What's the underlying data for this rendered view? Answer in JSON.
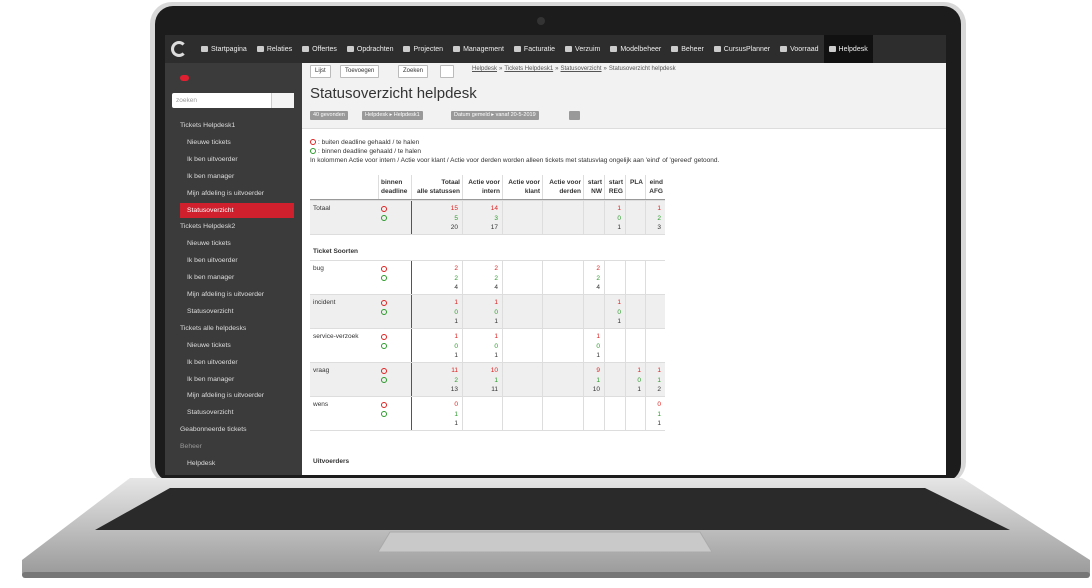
{
  "nav": {
    "items": [
      {
        "label": "Startpagina"
      },
      {
        "label": "Relaties"
      },
      {
        "label": "Offertes"
      },
      {
        "label": "Opdrachten"
      },
      {
        "label": "Projecten"
      },
      {
        "label": "Management"
      },
      {
        "label": "Facturatie"
      },
      {
        "label": "Verzuim"
      },
      {
        "label": "Modelbeheer"
      },
      {
        "label": "Beheer"
      },
      {
        "label": "CursusPlanner"
      },
      {
        "label": "Voorraad"
      },
      {
        "label": "Helpdesk",
        "active": true
      }
    ]
  },
  "sidebar": {
    "search_placeholder": "zoeken",
    "items": [
      {
        "label": "Tickets Helpdesk1",
        "level": 0
      },
      {
        "label": "Nieuwe tickets",
        "level": 1
      },
      {
        "label": "Ik ben uitvoerder",
        "level": 1
      },
      {
        "label": "Ik ben manager",
        "level": 1
      },
      {
        "label": "Mijn afdeling is uitvoerder",
        "level": 1
      },
      {
        "label": "Statusoverzicht",
        "level": 1,
        "active": true
      },
      {
        "label": "Tickets Helpdesk2",
        "level": 0
      },
      {
        "label": "Nieuwe tickets",
        "level": 1
      },
      {
        "label": "Ik ben uitvoerder",
        "level": 1
      },
      {
        "label": "Ik ben manager",
        "level": 1
      },
      {
        "label": "Mijn afdeling is uitvoerder",
        "level": 1
      },
      {
        "label": "Statusoverzicht",
        "level": 1
      },
      {
        "label": "Tickets alle helpdesks",
        "level": 0
      },
      {
        "label": "Nieuwe tickets",
        "level": 1
      },
      {
        "label": "Ik ben uitvoerder",
        "level": 1
      },
      {
        "label": "Ik ben manager",
        "level": 1
      },
      {
        "label": "Mijn afdeling is uitvoerder",
        "level": 1
      },
      {
        "label": "Statusoverzicht",
        "level": 1
      },
      {
        "label": "Geabonneerde tickets",
        "level": 0
      },
      {
        "label": "Beheer",
        "level": 0,
        "muted": true
      },
      {
        "label": "Helpdesk",
        "level": 1
      }
    ]
  },
  "toolbar": {
    "buttons": [
      "Lijst",
      "Toevoegen",
      "Zoeken"
    ],
    "breadcrumb": [
      "Helpdesk",
      "Tickets Helpdesk1",
      "Statusoverzicht",
      "Statusoverzicht helpdesk"
    ],
    "separator": "»"
  },
  "header": {
    "title": "Statusoverzicht helpdesk",
    "filters": [
      "40 gevonden",
      "Helpdesk ▸ Helpdesk1",
      "Datum gemeld ▸ vanaf 20-5-2019"
    ]
  },
  "legend": {
    "outside": ": buiten deadline gehaald / te halen",
    "inside": ": binnen deadline gehaald / te halen",
    "note": "In kolommen Actie voor intern / Actie voor klant / Actie voor derden worden alleen tickets met statusvlag ongelijk aan 'eind' of 'gereed' getoond."
  },
  "table": {
    "headers": [
      [
        "binnen",
        "deadline"
      ],
      [
        "Totaal",
        "alle statussen"
      ],
      [
        "Actie voor",
        "intern"
      ],
      [
        "Actie voor",
        "klant"
      ],
      [
        "Actie voor",
        "derden"
      ],
      [
        "start",
        "NW"
      ],
      [
        "start",
        "REG"
      ],
      [
        "PLA"
      ],
      [
        "eind",
        "AFG"
      ]
    ],
    "rows": [
      {
        "label": "Totaal",
        "lines": [
          [
            15,
            14,
            null,
            null,
            null,
            1,
            null,
            1
          ],
          [
            5,
            3,
            null,
            null,
            null,
            0,
            null,
            2
          ],
          [
            20,
            17,
            null,
            null,
            null,
            1,
            null,
            3
          ]
        ]
      },
      {
        "section": "Ticket Soorten"
      },
      {
        "label": "bug",
        "lines": [
          [
            2,
            2,
            null,
            null,
            2,
            null,
            null,
            null
          ],
          [
            2,
            2,
            null,
            null,
            2,
            null,
            null,
            null
          ],
          [
            4,
            4,
            null,
            null,
            4,
            null,
            null,
            null
          ]
        ]
      },
      {
        "label": "incident",
        "lines": [
          [
            1,
            1,
            null,
            null,
            null,
            1,
            null,
            null
          ],
          [
            0,
            0,
            null,
            null,
            null,
            0,
            null,
            null
          ],
          [
            1,
            1,
            null,
            null,
            null,
            1,
            null,
            null
          ]
        ]
      },
      {
        "label": "service-verzoek",
        "lines": [
          [
            1,
            1,
            null,
            null,
            1,
            null,
            null,
            null
          ],
          [
            0,
            0,
            null,
            null,
            0,
            null,
            null,
            null
          ],
          [
            1,
            1,
            null,
            null,
            1,
            null,
            null,
            null
          ]
        ]
      },
      {
        "label": "vraag",
        "lines": [
          [
            11,
            10,
            null,
            null,
            9,
            null,
            1,
            1
          ],
          [
            2,
            1,
            null,
            null,
            1,
            null,
            0,
            1
          ],
          [
            13,
            11,
            null,
            null,
            10,
            null,
            1,
            2
          ]
        ]
      },
      {
        "label": "wens",
        "lines": [
          [
            0,
            null,
            null,
            null,
            null,
            null,
            null,
            0
          ],
          [
            1,
            null,
            null,
            null,
            null,
            null,
            null,
            1
          ],
          [
            1,
            null,
            null,
            null,
            null,
            null,
            null,
            1
          ]
        ]
      },
      {
        "section": "Uitvoerders"
      }
    ]
  }
}
